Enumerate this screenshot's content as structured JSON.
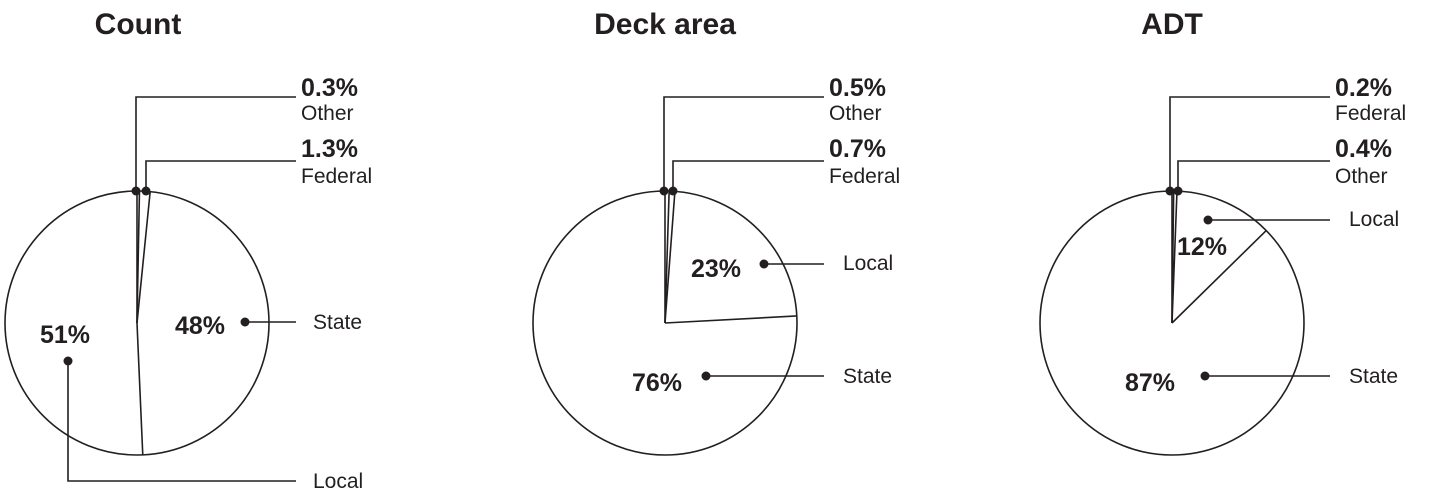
{
  "chart_data": [
    {
      "type": "pie",
      "title": "Count",
      "slices": [
        {
          "label": "Other",
          "value": 0.3,
          "value_label": "0.3%"
        },
        {
          "label": "Federal",
          "value": 1.3,
          "value_label": "1.3%"
        },
        {
          "label": "State",
          "value": 48,
          "value_label": "48%"
        },
        {
          "label": "Local",
          "value": 51,
          "value_label": "51%"
        }
      ]
    },
    {
      "type": "pie",
      "title": "Deck area",
      "slices": [
        {
          "label": "Other",
          "value": 0.5,
          "value_label": "0.5%"
        },
        {
          "label": "Federal",
          "value": 0.7,
          "value_label": "0.7%"
        },
        {
          "label": "Local",
          "value": 23,
          "value_label": "23%"
        },
        {
          "label": "State",
          "value": 76,
          "value_label": "76%"
        }
      ]
    },
    {
      "type": "pie",
      "title": "ADT",
      "slices": [
        {
          "label": "Federal",
          "value": 0.2,
          "value_label": "0.2%"
        },
        {
          "label": "Other",
          "value": 0.4,
          "value_label": "0.4%"
        },
        {
          "label": "Local",
          "value": 12,
          "value_label": "12%"
        },
        {
          "label": "State",
          "value": 87,
          "value_label": "87%"
        }
      ]
    }
  ],
  "colors": {
    "ink": "#231f20",
    "fill": "#ffffff"
  }
}
